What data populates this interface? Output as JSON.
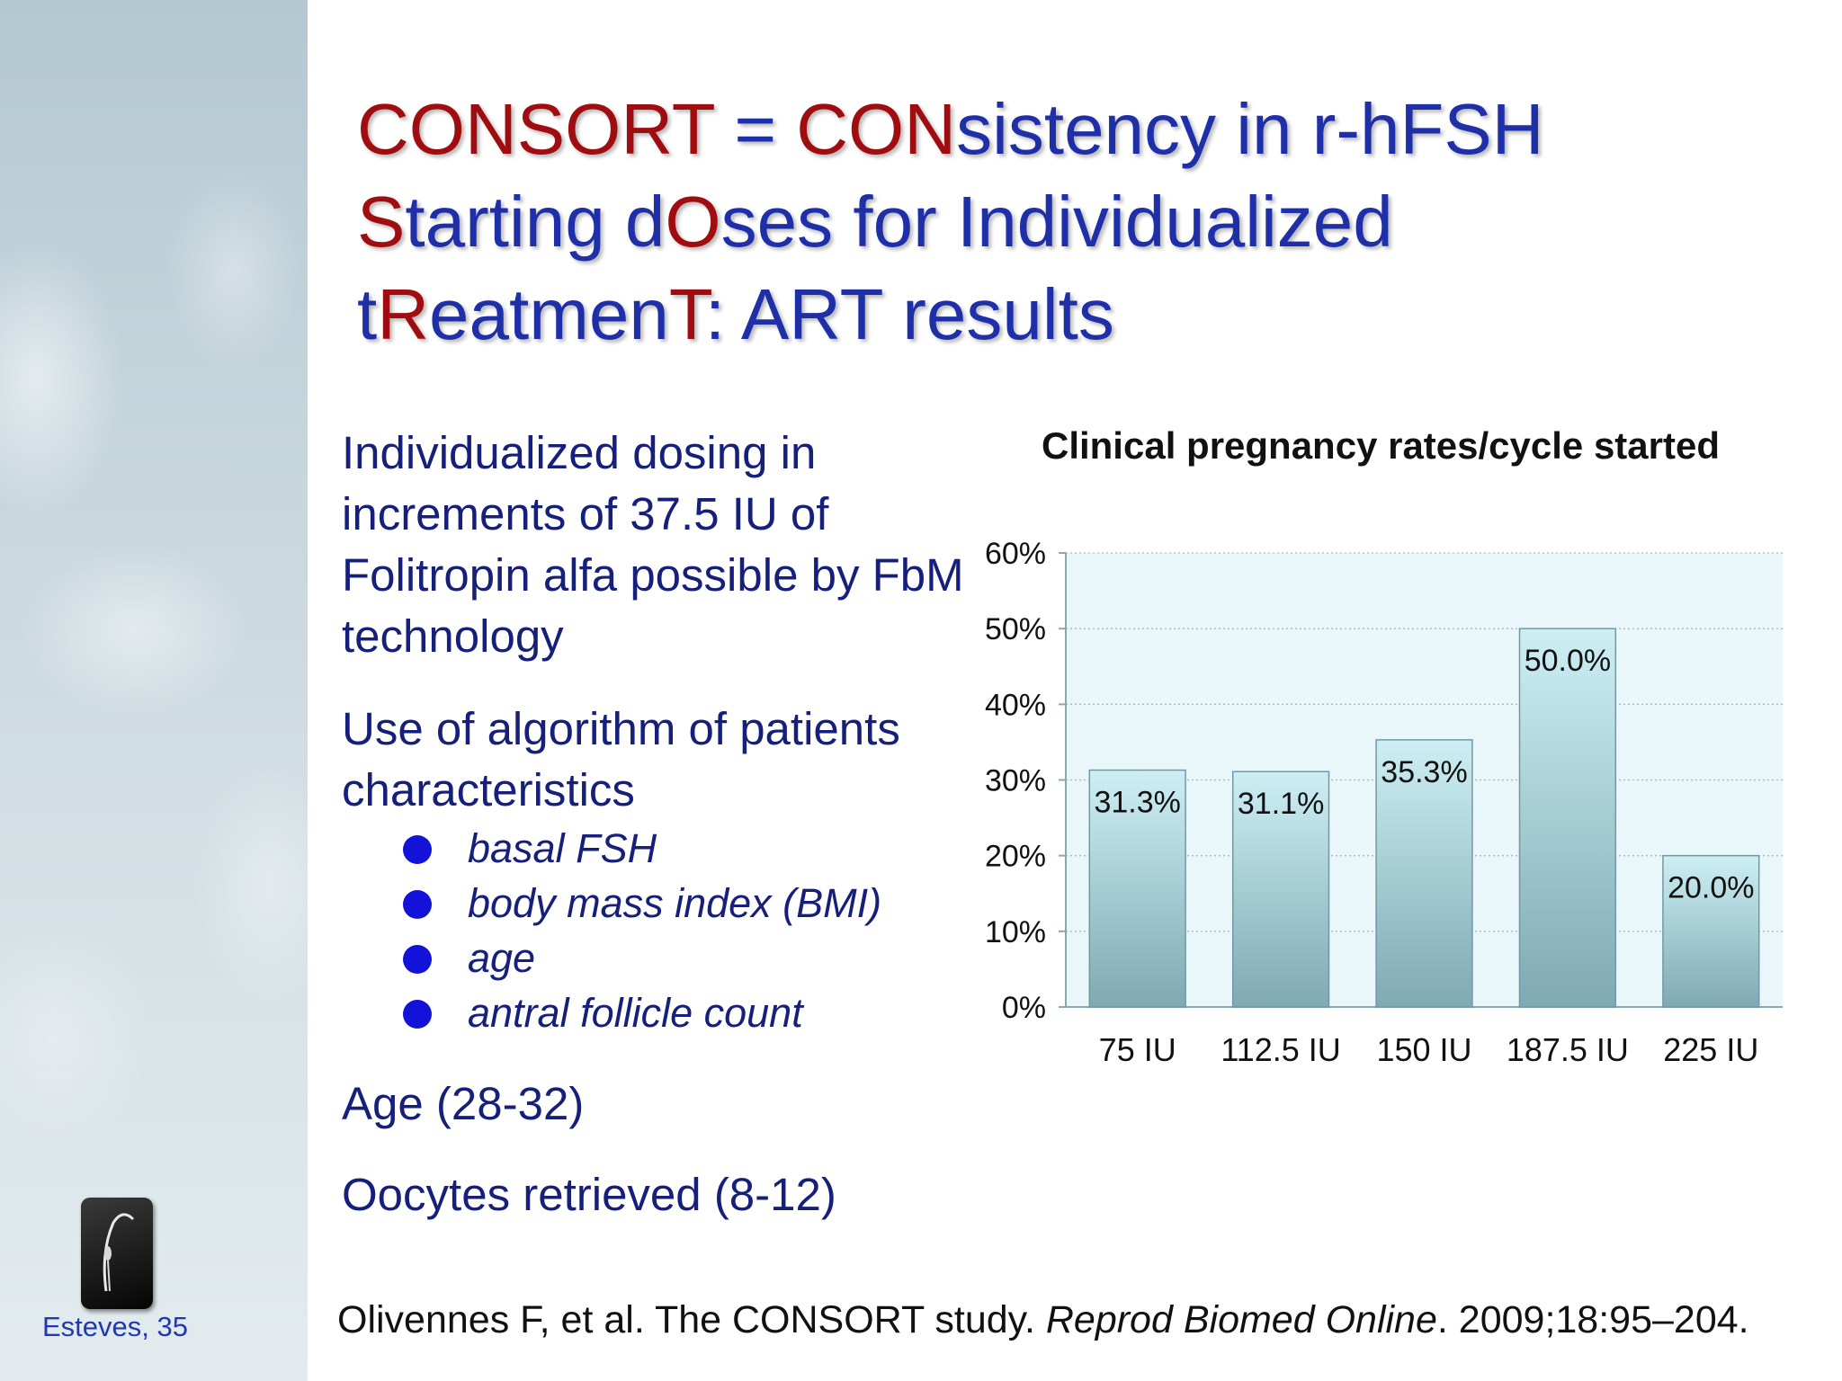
{
  "title": {
    "line1": [
      {
        "t": "CONSORT",
        "c": "r"
      },
      {
        "t": " = ",
        "c": "b"
      },
      {
        "t": "CON",
        "c": "r"
      },
      {
        "t": "sistency in r-hFSH",
        "c": "b"
      }
    ],
    "line2": [
      {
        "t": "S",
        "c": "r"
      },
      {
        "t": "tarting d",
        "c": "b"
      },
      {
        "t": "O",
        "c": "r"
      },
      {
        "t": "ses for Individualized",
        "c": "b"
      }
    ],
    "line3": [
      {
        "t": "t",
        "c": "b"
      },
      {
        "t": "R",
        "c": "r"
      },
      {
        "t": "eatmen",
        "c": "b"
      },
      {
        "t": "T",
        "c": "r"
      },
      {
        "t": ": ART results",
        "c": "b"
      }
    ]
  },
  "body": {
    "para1": "Individualized dosing in increments of 37.5 IU of Folitropin alfa possible by FbM technology",
    "para2": "Use of algorithm of patients characteristics",
    "bullets": [
      "basal FSH",
      "body mass index (BMI)",
      "age",
      "antral follicle count"
    ],
    "age": "Age (28-32)",
    "oocytes": "Oocytes retrieved (8-12)"
  },
  "citation": {
    "authors": "Olivennes F, et al. The CONSORT study. ",
    "journal": "Reprod Biomed Online",
    "details": ". 2009;18:95–204."
  },
  "sidebar": {
    "credit": "Esteves, 35"
  },
  "colors": {
    "title_red": "#a00d10",
    "title_blue": "#1f2fa8",
    "body_text": "#16207a",
    "bullet": "#1212d8",
    "bar_top": "#cdeff4",
    "bar_bottom": "#7fa9b3",
    "plot_bg": "#e9f7fa"
  },
  "chart_data": {
    "type": "bar",
    "title": "Clinical pregnancy rates/cycle started",
    "categories": [
      "75 IU",
      "112.5 IU",
      "150 IU",
      "187.5 IU",
      "225 IU"
    ],
    "values": [
      31.3,
      31.1,
      35.3,
      50.0,
      20.0
    ],
    "data_labels": [
      "31.3%",
      "31.1%",
      "35.3%",
      "50.0%",
      "20.0%"
    ],
    "yticks": [
      "0%",
      "10%",
      "20%",
      "30%",
      "40%",
      "50%",
      "60%"
    ],
    "ylim": [
      0,
      60
    ],
    "grid": true,
    "xlabel": "",
    "ylabel": ""
  }
}
